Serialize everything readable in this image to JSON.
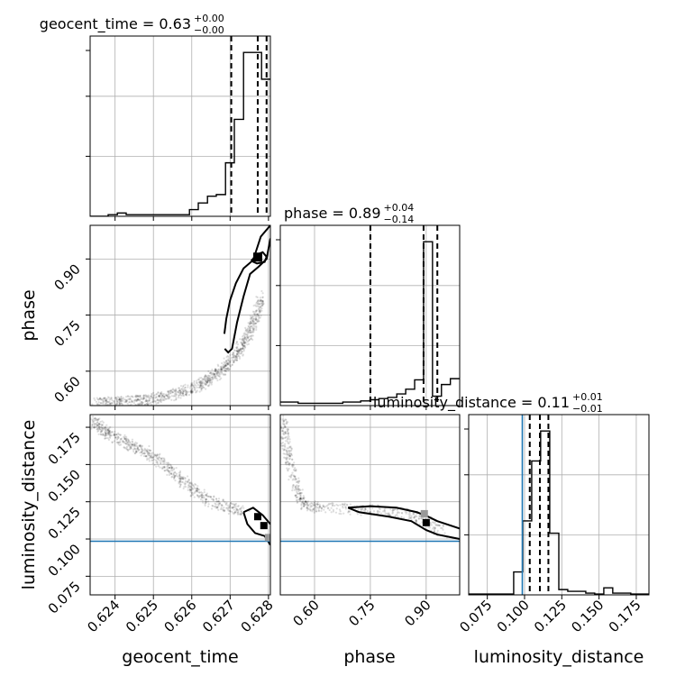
{
  "chart_data": {
    "type": "corner",
    "parameters": [
      "geocent_time",
      "phase",
      "luminosity_distance"
    ],
    "titles": [
      {
        "name": "geocent_time",
        "median": "0.63",
        "plus": "+0.00",
        "minus": "−0.00"
      },
      {
        "name": "phase",
        "median": "0.89",
        "plus": "+0.04",
        "minus": "−0.14"
      },
      {
        "name": "luminosity_distance",
        "median": "0.11",
        "plus": "+0.01",
        "minus": "−0.01"
      }
    ],
    "ranges": {
      "geocent_time": [
        0.62335,
        0.62805
      ],
      "phase": [
        0.508,
        0.99
      ],
      "luminosity_distance": [
        0.0625,
        0.1835
      ]
    },
    "ticks": {
      "geocent_time": [
        "0.624",
        "0.625",
        "0.626",
        "0.627",
        "0.628"
      ],
      "phase": [
        "0.60",
        "0.75",
        "0.90"
      ],
      "luminosity_distance": [
        "0.075",
        "0.100",
        "0.125",
        "0.150",
        "0.175"
      ]
    },
    "truth": {
      "luminosity_distance": 0.0985
    },
    "histograms": {
      "geocent_time": {
        "edges": [
          0.62335,
          0.62359,
          0.62382,
          0.62406,
          0.62429,
          0.62453,
          0.62476,
          0.625,
          0.62523,
          0.62547,
          0.6257,
          0.62594,
          0.62617,
          0.62641,
          0.62664,
          0.62688,
          0.62711,
          0.62735,
          0.62758,
          0.62782,
          0.62805
        ],
        "counts": [
          0,
          0,
          1,
          2,
          1,
          1,
          1,
          1,
          1,
          1,
          1,
          4,
          8,
          12,
          13,
          32,
          58,
          98,
          98,
          82
        ],
        "quantiles": [
          0.62703,
          0.62772,
          0.62795
        ]
      },
      "phase": {
        "edges": [
          0.508,
          0.532,
          0.556,
          0.58,
          0.604,
          0.628,
          0.652,
          0.676,
          0.7,
          0.724,
          0.749,
          0.773,
          0.797,
          0.821,
          0.845,
          0.869,
          0.893,
          0.917,
          0.941,
          0.965,
          0.99
        ],
        "counts": [
          3,
          3,
          2,
          2,
          2,
          2,
          2,
          3,
          3,
          4,
          5,
          6,
          7,
          10,
          14,
          22,
          140,
          8,
          18,
          23
        ],
        "quantiles": [
          0.75,
          0.893,
          0.93
        ]
      },
      "luminosity_distance": {
        "edges": [
          0.0625,
          0.0685,
          0.0745,
          0.0806,
          0.0866,
          0.0927,
          0.0988,
          0.1048,
          0.1108,
          0.1169,
          0.123,
          0.129,
          0.135,
          0.1411,
          0.1471,
          0.1532,
          0.1592,
          0.1653,
          0.1713,
          0.1774,
          0.1835
        ],
        "counts": [
          0.5,
          0.5,
          0.5,
          0.5,
          0.5,
          13,
          42,
          76,
          93,
          35,
          3,
          2,
          2,
          1,
          0.5,
          4,
          1,
          1,
          0.5,
          0.5
        ],
        "quantiles": [
          0.1035,
          0.1103,
          0.116
        ]
      }
    },
    "samples": {
      "time_phase": [
        [
          0.6235,
          0.514
        ],
        [
          0.6238,
          0.516
        ],
        [
          0.6241,
          0.517
        ],
        [
          0.6244,
          0.519
        ],
        [
          0.6247,
          0.522
        ],
        [
          0.625,
          0.526
        ],
        [
          0.6253,
          0.532
        ],
        [
          0.6256,
          0.54
        ],
        [
          0.6259,
          0.55
        ],
        [
          0.6262,
          0.562
        ],
        [
          0.6264,
          0.576
        ],
        [
          0.6266,
          0.59
        ],
        [
          0.6268,
          0.605
        ],
        [
          0.627,
          0.625
        ],
        [
          0.6272,
          0.648
        ],
        [
          0.6273,
          0.672
        ],
        [
          0.6275,
          0.7
        ],
        [
          0.6276,
          0.73
        ],
        [
          0.6277,
          0.76
        ],
        [
          0.6278,
          0.8
        ]
      ],
      "time_dist": [
        [
          0.6234,
          0.179
        ],
        [
          0.6236,
          0.175
        ],
        [
          0.6238,
          0.171
        ],
        [
          0.6241,
          0.167
        ],
        [
          0.6244,
          0.163
        ],
        [
          0.6247,
          0.16
        ],
        [
          0.625,
          0.155
        ],
        [
          0.6253,
          0.149
        ],
        [
          0.6256,
          0.143
        ],
        [
          0.6259,
          0.136
        ],
        [
          0.6262,
          0.13
        ],
        [
          0.6266,
          0.124
        ],
        [
          0.627,
          0.121
        ],
        [
          0.6274,
          0.118
        ]
      ],
      "phase_dist": [
        [
          0.515,
          0.18
        ],
        [
          0.52,
          0.168
        ],
        [
          0.53,
          0.155
        ],
        [
          0.545,
          0.14
        ],
        [
          0.56,
          0.128
        ],
        [
          0.58,
          0.122
        ],
        [
          0.62,
          0.121
        ],
        [
          0.7,
          0.12
        ],
        [
          0.78,
          0.119
        ],
        [
          0.85,
          0.117
        ],
        [
          0.9,
          0.112
        ],
        [
          0.95,
          0.104
        ]
      ]
    },
    "contours": {
      "time_phase": [
        [
          [
            0.62685,
            0.7
          ],
          [
            0.6269,
            0.74
          ],
          [
            0.627,
            0.79
          ],
          [
            0.62715,
            0.835
          ],
          [
            0.62735,
            0.875
          ],
          [
            0.6276,
            0.897
          ],
          [
            0.6278,
            0.96
          ],
          [
            0.62805,
            0.99
          ]
        ],
        [
          [
            0.62805,
            0.955
          ],
          [
            0.62795,
            0.9
          ],
          [
            0.62775,
            0.88
          ],
          [
            0.62752,
            0.86
          ],
          [
            0.62735,
            0.8
          ],
          [
            0.62718,
            0.73
          ],
          [
            0.62705,
            0.66
          ],
          [
            0.62695,
            0.65
          ],
          [
            0.62686,
            0.66
          ]
        ]
      ],
      "time_phase_inner": [
        [
          [
            0.62755,
            0.895
          ],
          [
            0.6277,
            0.912
          ],
          [
            0.62785,
            0.918
          ],
          [
            0.62795,
            0.906
          ],
          [
            0.6279,
            0.892
          ],
          [
            0.6277,
            0.888
          ],
          [
            0.62755,
            0.895
          ]
        ]
      ],
      "time_dist": [
        [
          [
            0.62735,
            0.118
          ],
          [
            0.6276,
            0.121
          ],
          [
            0.62785,
            0.116
          ],
          [
            0.62805,
            0.11
          ]
        ],
        [
          [
            0.62805,
            0.096
          ],
          [
            0.6279,
            0.102
          ],
          [
            0.62765,
            0.104
          ],
          [
            0.62745,
            0.11
          ],
          [
            0.62735,
            0.118
          ]
        ]
      ],
      "phase_dist": [
        [
          [
            0.69,
            0.121
          ],
          [
            0.75,
            0.122
          ],
          [
            0.82,
            0.121
          ],
          [
            0.875,
            0.118
          ],
          [
            0.905,
            0.115
          ],
          [
            0.93,
            0.112
          ],
          [
            0.99,
            0.107
          ]
        ],
        [
          [
            0.99,
            0.1
          ],
          [
            0.93,
            0.103
          ],
          [
            0.9,
            0.106
          ],
          [
            0.86,
            0.112
          ],
          [
            0.8,
            0.115
          ],
          [
            0.72,
            0.118
          ],
          [
            0.69,
            0.121
          ]
        ]
      ]
    }
  }
}
